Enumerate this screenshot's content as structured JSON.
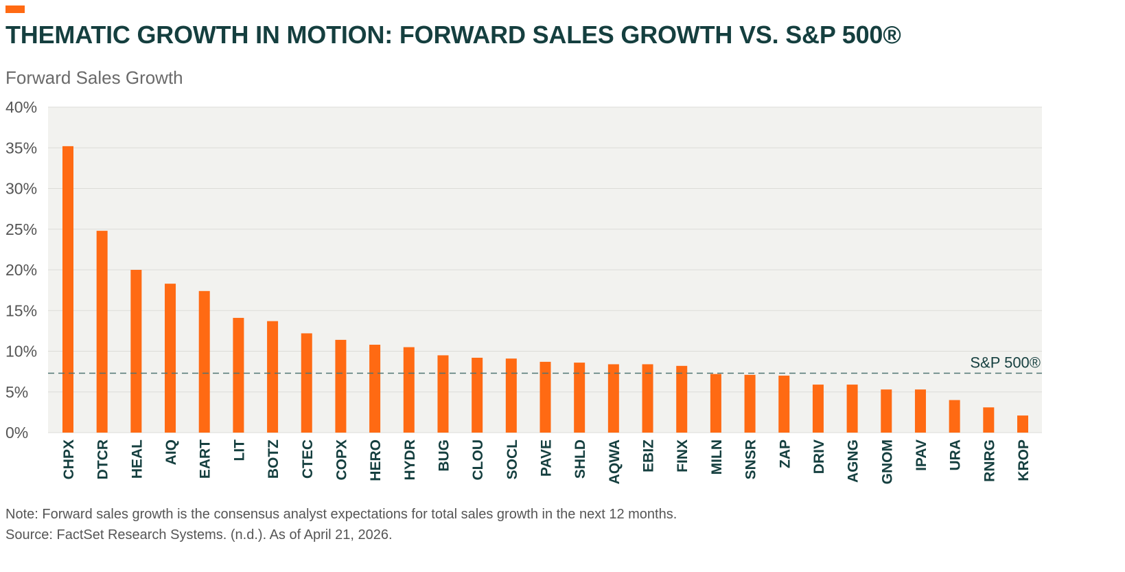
{
  "colors": {
    "accent": "#ff6a13",
    "title": "#153f3f",
    "plot_background": "#f2f2ef",
    "grid": "#dcdcd8",
    "reference_line": "#4f7572",
    "text": "#555555"
  },
  "header": {
    "title": "THEMATIC GROWTH IN MOTION: FORWARD SALES GROWTH VS. S&P 500®",
    "subtitle": "Forward Sales Growth"
  },
  "chart_data": {
    "type": "bar",
    "title": "THEMATIC GROWTH IN MOTION: FORWARD SALES GROWTH VS. S&P 500®",
    "ylabel": "Forward Sales Growth",
    "xlabel": "",
    "ylim": [
      0,
      40
    ],
    "yticks": [
      0,
      5,
      10,
      15,
      20,
      25,
      30,
      35,
      40
    ],
    "ytick_labels": [
      "0%",
      "5%",
      "10%",
      "15%",
      "20%",
      "25%",
      "30%",
      "35%",
      "40%"
    ],
    "grid": true,
    "categories": [
      "CHPX",
      "DTCR",
      "HEAL",
      "AIQ",
      "EART",
      "LIT",
      "BOTZ",
      "CTEC",
      "COPX",
      "HERO",
      "HYDR",
      "BUG",
      "CLOU",
      "SOCL",
      "PAVE",
      "SHLD",
      "AQWA",
      "EBIZ",
      "FINX",
      "MILN",
      "SNSR",
      "ZAP",
      "DRIV",
      "AGNG",
      "GNOM",
      "IPAV",
      "URA",
      "RNRG",
      "KROP"
    ],
    "values": [
      35.2,
      24.8,
      20.0,
      18.3,
      17.4,
      14.1,
      13.7,
      12.2,
      11.4,
      10.8,
      10.5,
      9.5,
      9.2,
      9.1,
      8.7,
      8.6,
      8.4,
      8.4,
      8.2,
      7.2,
      7.1,
      7.0,
      5.9,
      5.9,
      5.3,
      5.3,
      4.0,
      3.1,
      2.1
    ],
    "reference_line": {
      "label": "S&P 500®",
      "value": 7.3,
      "style": "dashed"
    }
  },
  "footer": {
    "note": "Note: Forward sales growth is the consensus analyst expectations for total sales growth in the next 12 months.",
    "source": "Source: FactSet Research Systems. (n.d.). As of April 21, 2026."
  }
}
